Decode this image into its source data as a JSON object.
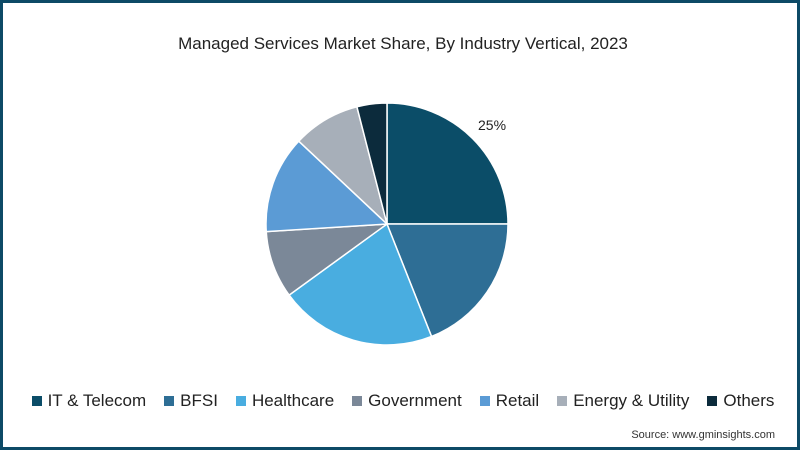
{
  "chart_data": {
    "type": "pie",
    "title": "Managed Services Market Share, By Industry Vertical, 2023",
    "categories": [
      "IT & Telecom",
      "BFSI",
      "Healthcare",
      "Government",
      "Retail",
      "Energy & Utility",
      "Others"
    ],
    "values": [
      25,
      19,
      21,
      9,
      13,
      9,
      4
    ],
    "colors": [
      "#0b4d68",
      "#2e6e95",
      "#49ade0",
      "#7b8898",
      "#5b9bd5",
      "#a7afb9",
      "#0c2b3c"
    ],
    "data_labels": [
      {
        "category": "IT & Telecom",
        "label": "25%"
      }
    ],
    "legend_position": "bottom",
    "start_angle": 0,
    "direction": "clockwise"
  },
  "source": "Source: www.gminsights.com",
  "colors": {
    "border": "#0d4a66",
    "background": "#ffffff",
    "text": "#222222"
  }
}
